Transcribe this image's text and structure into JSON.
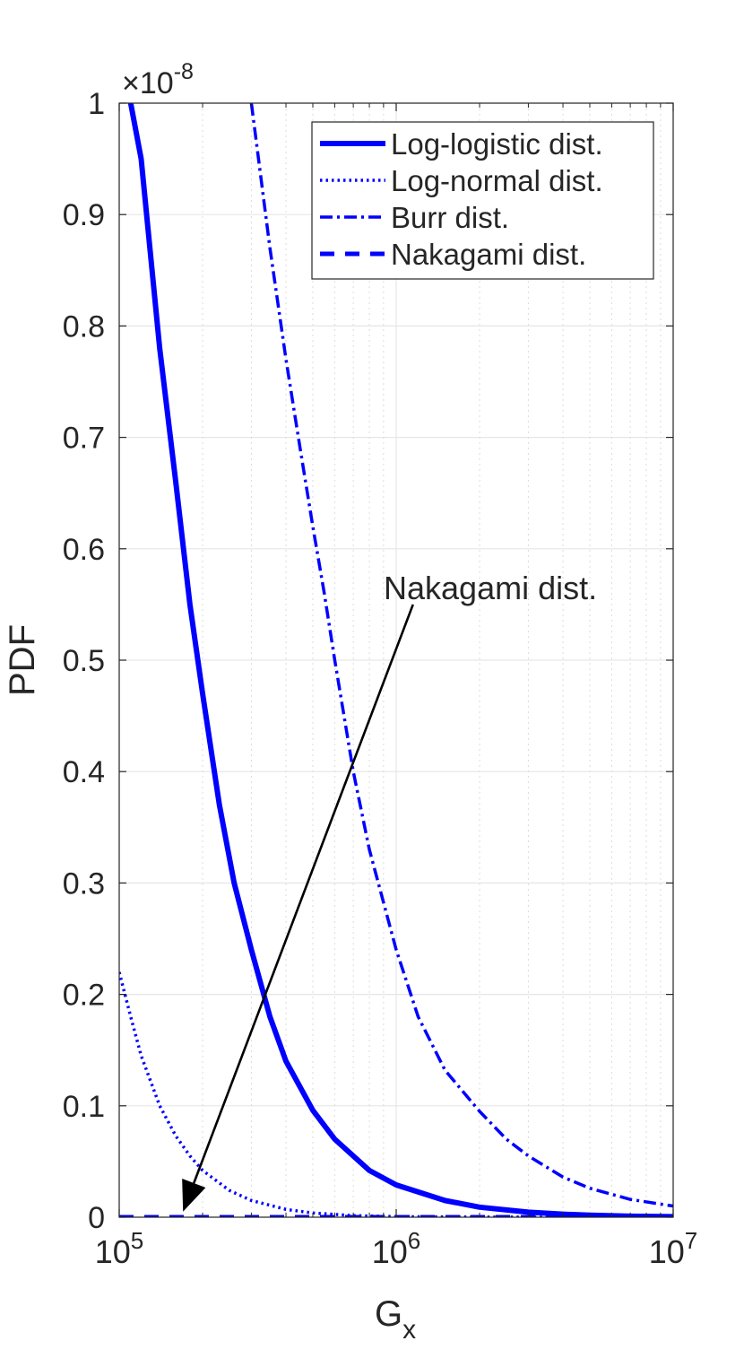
{
  "chart_data": {
    "type": "line",
    "title": "",
    "xlabel_main": "G",
    "xlabel_sub": "x",
    "ylabel": "PDF",
    "xscale": "log",
    "xlim": [
      100000,
      10000000
    ],
    "ylim": [
      0,
      1
    ],
    "y_multiplier": {
      "base": "×10",
      "exponent": "-8"
    },
    "x_ticks": [
      {
        "value": 100000,
        "base": "10",
        "exp": "5"
      },
      {
        "value": 1000000,
        "base": "10",
        "exp": "6"
      },
      {
        "value": 10000000,
        "base": "10",
        "exp": "7"
      }
    ],
    "y_ticks": [
      {
        "value": 0,
        "label": "0"
      },
      {
        "value": 0.1,
        "label": "0.1"
      },
      {
        "value": 0.2,
        "label": "0.2"
      },
      {
        "value": 0.3,
        "label": "0.3"
      },
      {
        "value": 0.4,
        "label": "0.4"
      },
      {
        "value": 0.5,
        "label": "0.5"
      },
      {
        "value": 0.6,
        "label": "0.6"
      },
      {
        "value": 0.7,
        "label": "0.7"
      },
      {
        "value": 0.8,
        "label": "0.8"
      },
      {
        "value": 0.9,
        "label": "0.9"
      },
      {
        "value": 1,
        "label": "1"
      }
    ],
    "grid": true,
    "minor_grid_x": true,
    "legend_position": "top-right",
    "series": [
      {
        "name": "Log-logistic dist.",
        "style": "solid",
        "color": "#0000ff",
        "x": [
          110000,
          120000,
          140000,
          160000,
          180000,
          200000,
          230000,
          260000,
          300000,
          350000,
          400000,
          500000,
          600000,
          800000,
          1000000,
          1500000,
          2000000,
          3000000,
          4000000,
          5000000,
          7000000,
          10000000
        ],
        "y": [
          1.0,
          0.95,
          0.78,
          0.66,
          0.55,
          0.47,
          0.37,
          0.3,
          0.24,
          0.18,
          0.14,
          0.096,
          0.07,
          0.042,
          0.029,
          0.015,
          0.009,
          0.0045,
          0.0027,
          0.0018,
          0.0009,
          0.0005
        ]
      },
      {
        "name": "Log-normal dist.",
        "style": "dotted",
        "color": "#0000ff",
        "x": [
          100000,
          110000,
          120000,
          140000,
          160000,
          180000,
          200000,
          250000,
          300000,
          400000,
          500000,
          700000,
          1000000,
          2000000,
          5000000,
          10000000
        ],
        "y": [
          0.22,
          0.18,
          0.145,
          0.1,
          0.073,
          0.055,
          0.042,
          0.024,
          0.015,
          0.007,
          0.0038,
          0.0014,
          0.0005,
          0.0001,
          0.0,
          0.0
        ]
      },
      {
        "name": "Burr dist.",
        "style": "dashdot",
        "color": "#0000ff",
        "x": [
          300000,
          350000,
          400000,
          450000,
          500000,
          550000,
          600000,
          700000,
          800000,
          1000000,
          1200000,
          1500000,
          2000000,
          2500000,
          3000000,
          4000000,
          5000000,
          7000000,
          10000000
        ],
        "y": [
          1.0,
          0.87,
          0.77,
          0.69,
          0.62,
          0.56,
          0.5,
          0.4,
          0.33,
          0.24,
          0.18,
          0.132,
          0.095,
          0.07,
          0.055,
          0.036,
          0.026,
          0.016,
          0.01
        ]
      },
      {
        "name": "Nakagami dist.",
        "style": "dashed",
        "color": "#0000ff",
        "x": [
          100000,
          10000000
        ],
        "y": [
          0,
          0
        ]
      }
    ],
    "annotation": {
      "text": "Nakagami dist.",
      "arrow_from": {
        "x": 1150000,
        "y": 0.55
      },
      "arrow_to": {
        "x": 170000,
        "y": 0.005
      }
    }
  }
}
